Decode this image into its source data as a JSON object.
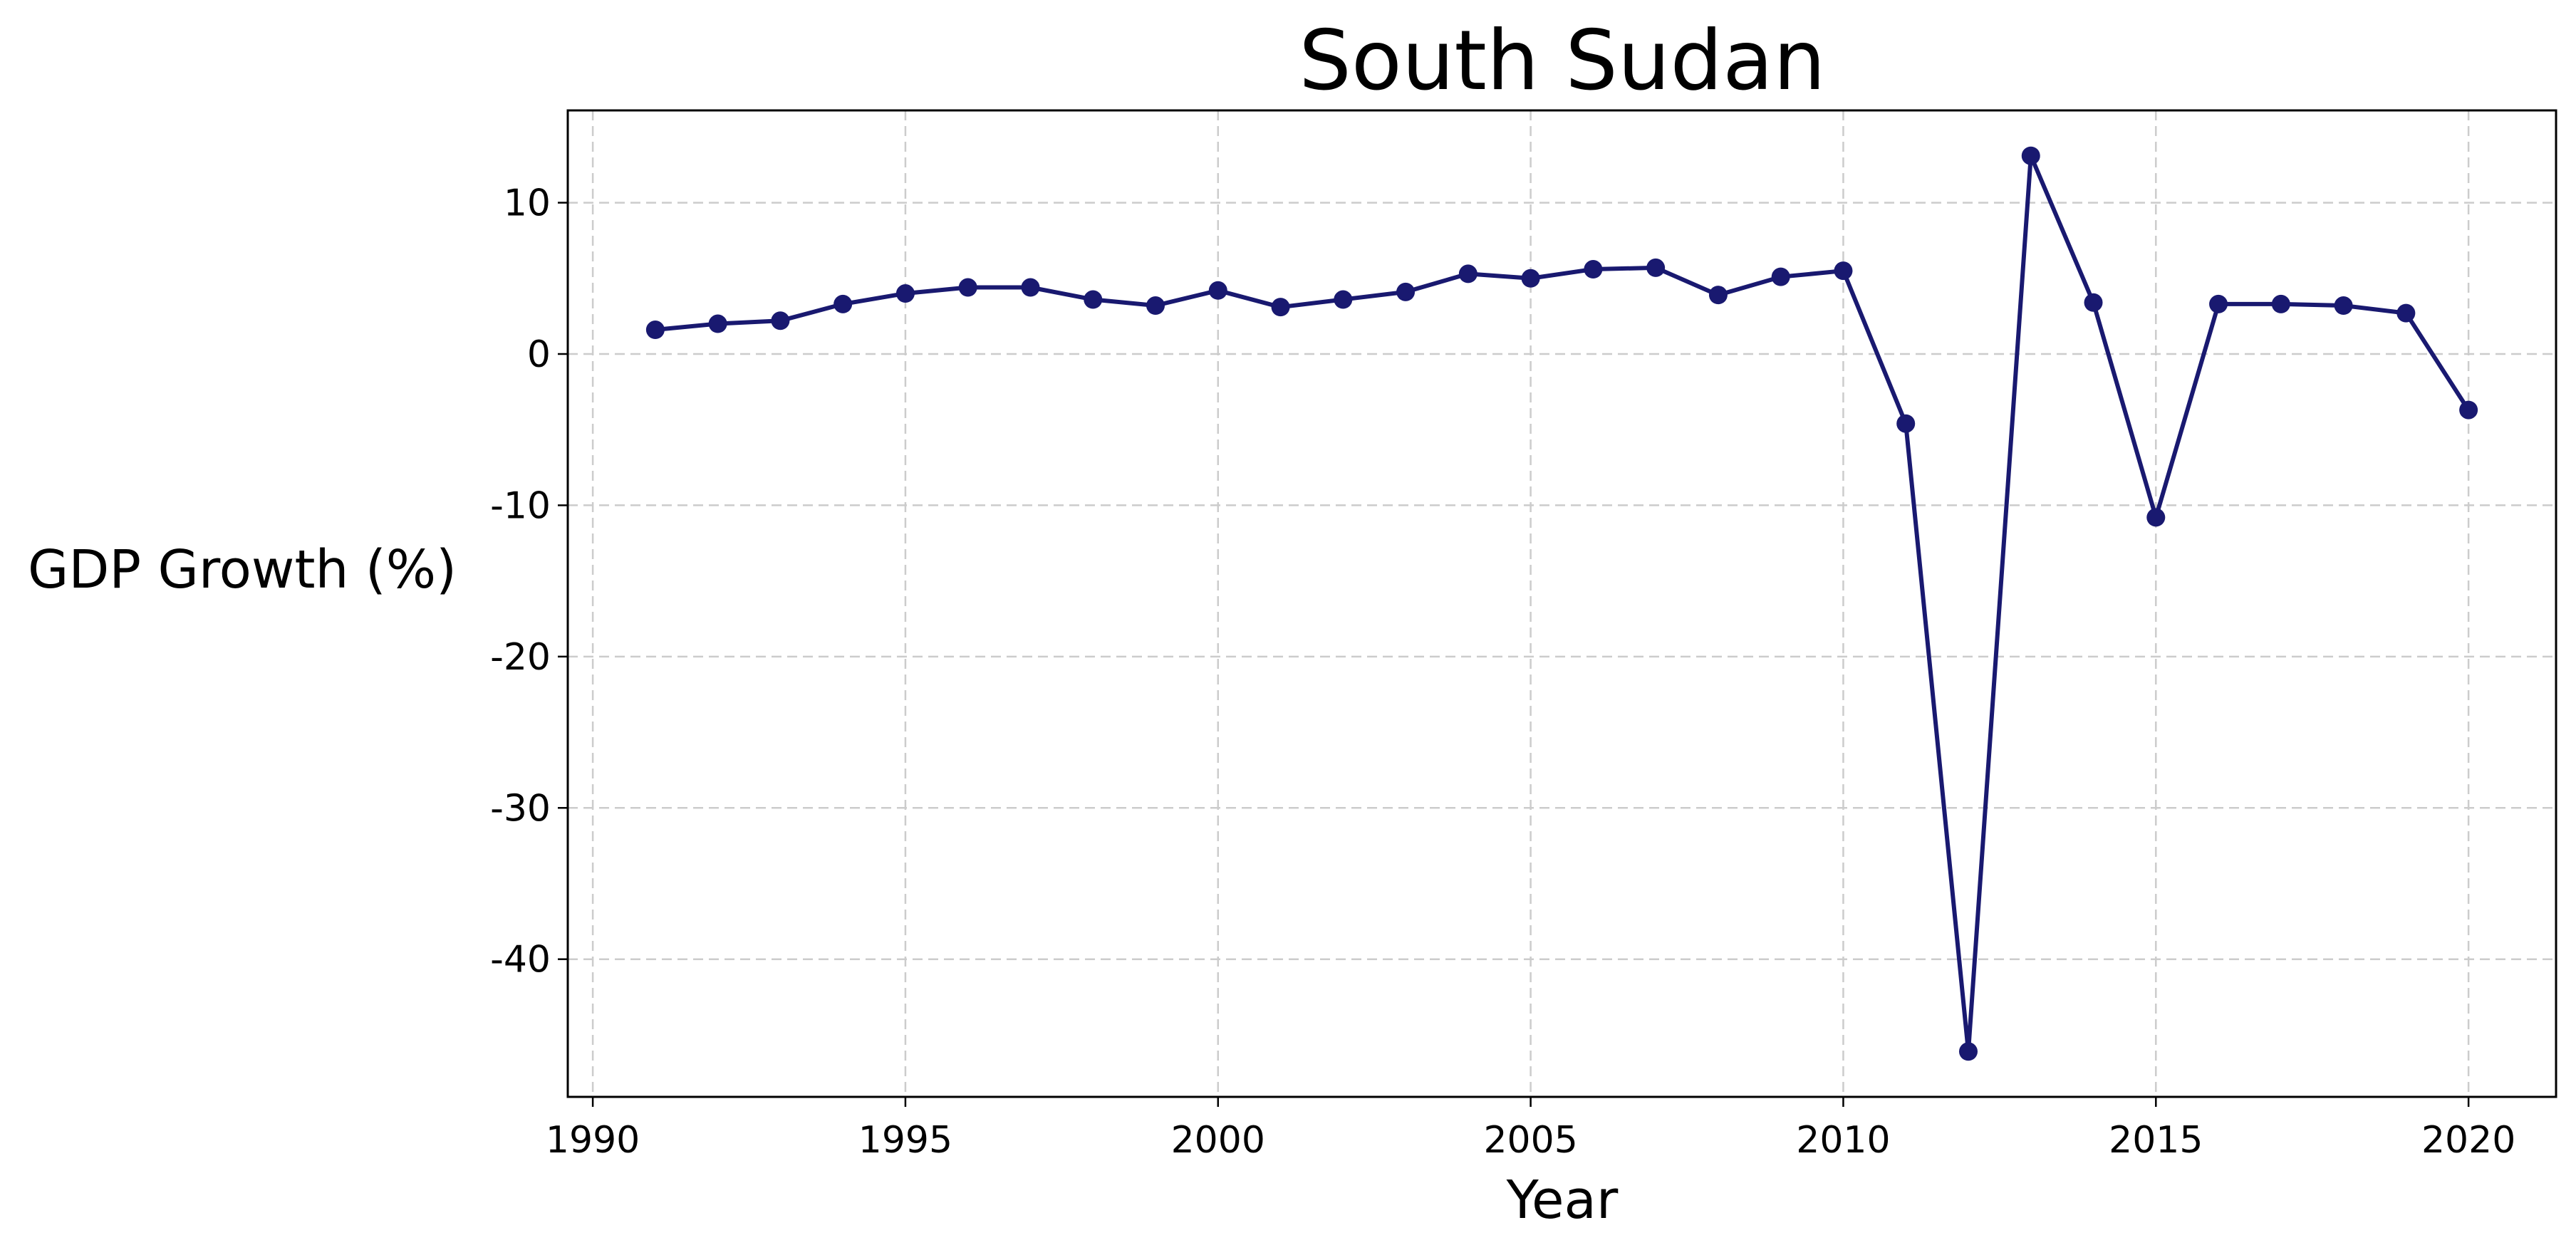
{
  "colors": {
    "series": "#191970",
    "grid": "#cccccc",
    "axes": "#000000",
    "background": "#ffffff"
  },
  "chart_data": {
    "type": "line",
    "title": "South Sudan",
    "xlabel": "Year",
    "ylabel": "GDP Growth (%)",
    "xlim": [
      1989.6,
      2021.4
    ],
    "ylim": [
      -49.1,
      16.1
    ],
    "xticks": [
      1990,
      1995,
      2000,
      2005,
      2010,
      2015,
      2020
    ],
    "yticks": [
      10,
      0,
      -10,
      -20,
      -30,
      -40
    ],
    "grid": true,
    "marker": "circle",
    "series": [
      {
        "x": [
          1991,
          1992,
          1993,
          1994,
          1995,
          1996,
          1997,
          1998,
          1999,
          2000,
          2001,
          2002,
          2003,
          2004,
          2005,
          2006,
          2007,
          2008,
          2009,
          2010,
          2011,
          2012,
          2013,
          2014,
          2015,
          2016,
          2017,
          2018,
          2019,
          2020
        ],
        "y": [
          1.6,
          2.0,
          2.2,
          3.3,
          4.0,
          4.4,
          4.4,
          3.6,
          3.2,
          4.2,
          3.1,
          3.6,
          4.1,
          5.3,
          5.0,
          5.6,
          5.7,
          3.9,
          5.1,
          5.5,
          -4.6,
          -46.1,
          13.1,
          3.4,
          -10.8,
          3.3,
          3.3,
          3.2,
          2.7,
          -3.7
        ]
      }
    ]
  }
}
